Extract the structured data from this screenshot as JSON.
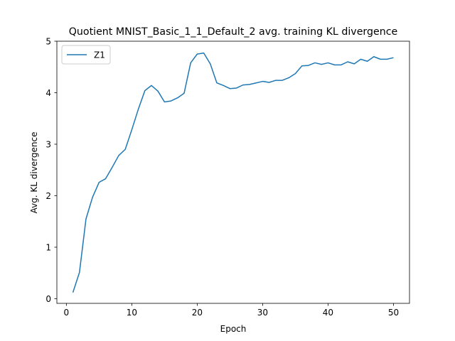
{
  "chart_data": {
    "type": "line",
    "title": "Quotient MNIST_Basic_1_1_Default_2 avg. training KL divergence",
    "xlabel": "Epoch",
    "ylabel": "Avg. KL divergence",
    "xlim": [
      -1.45,
      52.45
    ],
    "ylim": [
      -0.09,
      5.0
    ],
    "xticks": [
      0,
      10,
      20,
      30,
      40,
      50
    ],
    "yticks": [
      0,
      1,
      2,
      3,
      4,
      5
    ],
    "grid": false,
    "legend_position": "top-left",
    "series": [
      {
        "name": "Z1",
        "color": "#1f77b4",
        "x": [
          1,
          2,
          3,
          4,
          5,
          6,
          7,
          8,
          9,
          10,
          11,
          12,
          13,
          14,
          15,
          16,
          17,
          18,
          19,
          20,
          21,
          22,
          23,
          24,
          25,
          26,
          27,
          28,
          29,
          30,
          31,
          32,
          33,
          34,
          35,
          36,
          37,
          38,
          39,
          40,
          41,
          42,
          43,
          44,
          45,
          46,
          47,
          48,
          49,
          50
        ],
        "values": [
          0.12,
          0.51,
          1.55,
          1.97,
          2.26,
          2.33,
          2.55,
          2.78,
          2.9,
          3.28,
          3.68,
          4.04,
          4.14,
          4.03,
          3.82,
          3.84,
          3.9,
          3.99,
          4.58,
          4.75,
          4.77,
          4.56,
          4.19,
          4.14,
          4.08,
          4.09,
          4.15,
          4.16,
          4.19,
          4.22,
          4.2,
          4.24,
          4.24,
          4.29,
          4.37,
          4.52,
          4.53,
          4.58,
          4.55,
          4.58,
          4.54,
          4.54,
          4.6,
          4.56,
          4.65,
          4.61,
          4.7,
          4.65,
          4.65,
          4.68
        ]
      }
    ]
  }
}
